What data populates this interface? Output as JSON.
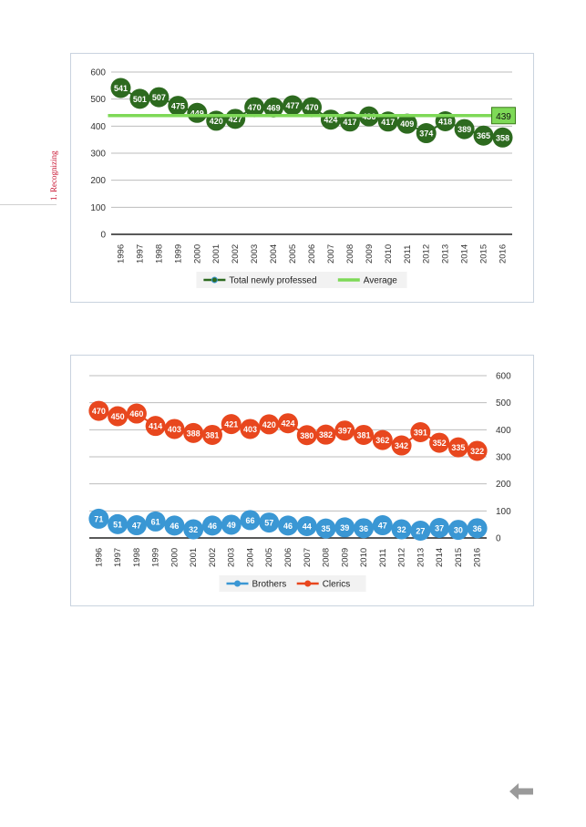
{
  "side_label": {
    "text": "1. Recognizing",
    "color": "#c8102e"
  },
  "nav": {
    "icon": "back-arrow-icon",
    "color": "#9a9a9a"
  },
  "chart_data": [
    {
      "type": "line",
      "x": [
        "1996",
        "1997",
        "1998",
        "1999",
        "2000",
        "2001",
        "2002",
        "2003",
        "2004",
        "2005",
        "2006",
        "2007",
        "2008",
        "2009",
        "2010",
        "2011",
        "2012",
        "2013",
        "2014",
        "2015",
        "2016"
      ],
      "series": [
        {
          "name": "Total newly professed",
          "color": "#2d6a1f",
          "values": [
            541,
            501,
            507,
            475,
            449,
            420,
            427,
            470,
            469,
            477,
            470,
            424,
            417,
            436,
            417,
            409,
            374,
            418,
            389,
            365,
            358
          ]
        },
        {
          "name": "Average",
          "color": "#7ed957",
          "value": 439,
          "label": "439"
        }
      ],
      "ylim": [
        0,
        600
      ],
      "yticks": [
        "0",
        "100",
        "200",
        "300",
        "400",
        "500",
        "600"
      ],
      "grid": true,
      "y_axis_side": "left",
      "legend_position": "bottom"
    },
    {
      "type": "line",
      "x": [
        "1996",
        "1997",
        "1998",
        "1999",
        "2000",
        "2001",
        "2002",
        "2003",
        "2004",
        "2005",
        "2006",
        "2007",
        "2008",
        "2009",
        "2010",
        "2011",
        "2012",
        "2013",
        "2014",
        "2015",
        "2016"
      ],
      "series": [
        {
          "name": "Brothers",
          "color": "#3a97d4",
          "values": [
            71,
            51,
            47,
            61,
            46,
            32,
            46,
            49,
            66,
            57,
            46,
            44,
            35,
            39,
            36,
            47,
            32,
            27,
            37,
            30,
            36
          ]
        },
        {
          "name": "Clerics",
          "color": "#e8471e",
          "values": [
            470,
            450,
            460,
            414,
            403,
            388,
            381,
            421,
            403,
            420,
            424,
            380,
            382,
            397,
            381,
            362,
            342,
            391,
            352,
            335,
            322
          ]
        }
      ],
      "ylim": [
        0,
        600
      ],
      "yticks": [
        "0",
        "100",
        "200",
        "300",
        "400",
        "500",
        "600"
      ],
      "grid": true,
      "y_axis_side": "right",
      "legend_position": "bottom"
    }
  ]
}
